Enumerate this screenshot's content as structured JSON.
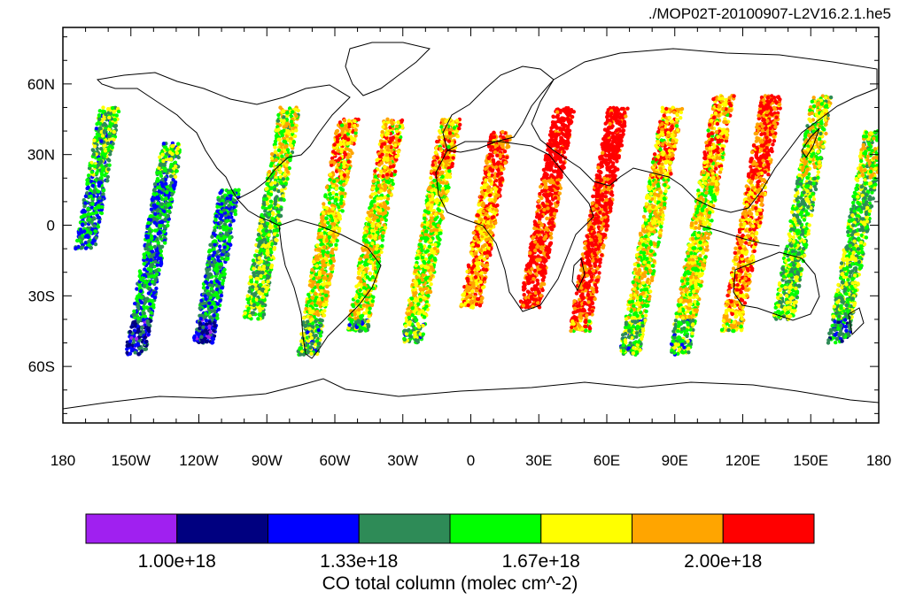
{
  "file_title": "./MOP02T-20100907-L2V16.2.1.he5",
  "map": {
    "projection": "cylindrical-equidistant",
    "lon_range": [
      -180,
      180
    ],
    "lat_range": [
      -84,
      84
    ],
    "lon_tick_labels": [
      {
        "lon": -180,
        "label": "180"
      },
      {
        "lon": -150,
        "label": "150W"
      },
      {
        "lon": -120,
        "label": "120W"
      },
      {
        "lon": -90,
        "label": "90W"
      },
      {
        "lon": -60,
        "label": "60W"
      },
      {
        "lon": -30,
        "label": "30W"
      },
      {
        "lon": 0,
        "label": "0"
      },
      {
        "lon": 30,
        "label": "30E"
      },
      {
        "lon": 60,
        "label": "60E"
      },
      {
        "lon": 90,
        "label": "90E"
      },
      {
        "lon": 120,
        "label": "120E"
      },
      {
        "lon": 150,
        "label": "150E"
      },
      {
        "lon": 180,
        "label": "180"
      }
    ],
    "lat_tick_labels": [
      {
        "lat": 60,
        "label": "60N"
      },
      {
        "lat": 30,
        "label": "30N"
      },
      {
        "lat": 0,
        "label": "0"
      },
      {
        "lat": -30,
        "label": "30S"
      },
      {
        "lat": -60,
        "label": "60S"
      }
    ],
    "coastline_color": "#000000",
    "swaths": [
      {
        "lon_center": -170,
        "lat_range": [
          -10,
          50
        ],
        "level": 3
      },
      {
        "lon_center": -148,
        "lat_range": [
          -55,
          35
        ],
        "level": 3
      },
      {
        "lon_center": -118,
        "lat_range": [
          -50,
          15
        ],
        "level": 3
      },
      {
        "lon_center": -96,
        "lat_range": [
          -40,
          50
        ],
        "level": 4
      },
      {
        "lon_center": -72,
        "lat_range": [
          -55,
          45
        ],
        "level": 5
      },
      {
        "lon_center": -50,
        "lat_range": [
          -45,
          45
        ],
        "level": 5
      },
      {
        "lon_center": -26,
        "lat_range": [
          -50,
          45
        ],
        "level": 5
      },
      {
        "lon_center": 0,
        "lat_range": [
          -35,
          40
        ],
        "level": 6
      },
      {
        "lon_center": 26,
        "lat_range": [
          -35,
          50
        ],
        "level": 7
      },
      {
        "lon_center": 48,
        "lat_range": [
          -45,
          50
        ],
        "level": 7
      },
      {
        "lon_center": 70,
        "lat_range": [
          -55,
          50
        ],
        "level": 5
      },
      {
        "lon_center": 92,
        "lat_range": [
          -55,
          55
        ],
        "level": 5
      },
      {
        "lon_center": 115,
        "lat_range": [
          -45,
          55
        ],
        "level": 6
      },
      {
        "lon_center": 138,
        "lat_range": [
          -40,
          55
        ],
        "level": 4
      },
      {
        "lon_center": 162,
        "lat_range": [
          -50,
          40
        ],
        "level": 4
      }
    ]
  },
  "colorbar": {
    "colors": [
      "#a020f0",
      "#000080",
      "#0000ff",
      "#2e8b57",
      "#00ff00",
      "#ffff00",
      "#ffa500",
      "#ff0000"
    ],
    "labels": [
      {
        "boundary": 1,
        "text": "1.00e+18"
      },
      {
        "boundary": 3,
        "text": "1.33e+18"
      },
      {
        "boundary": 5,
        "text": "1.67e+18"
      },
      {
        "boundary": 7,
        "text": "2.00e+18"
      }
    ],
    "title": "CO total column (molec cm^-2)"
  }
}
